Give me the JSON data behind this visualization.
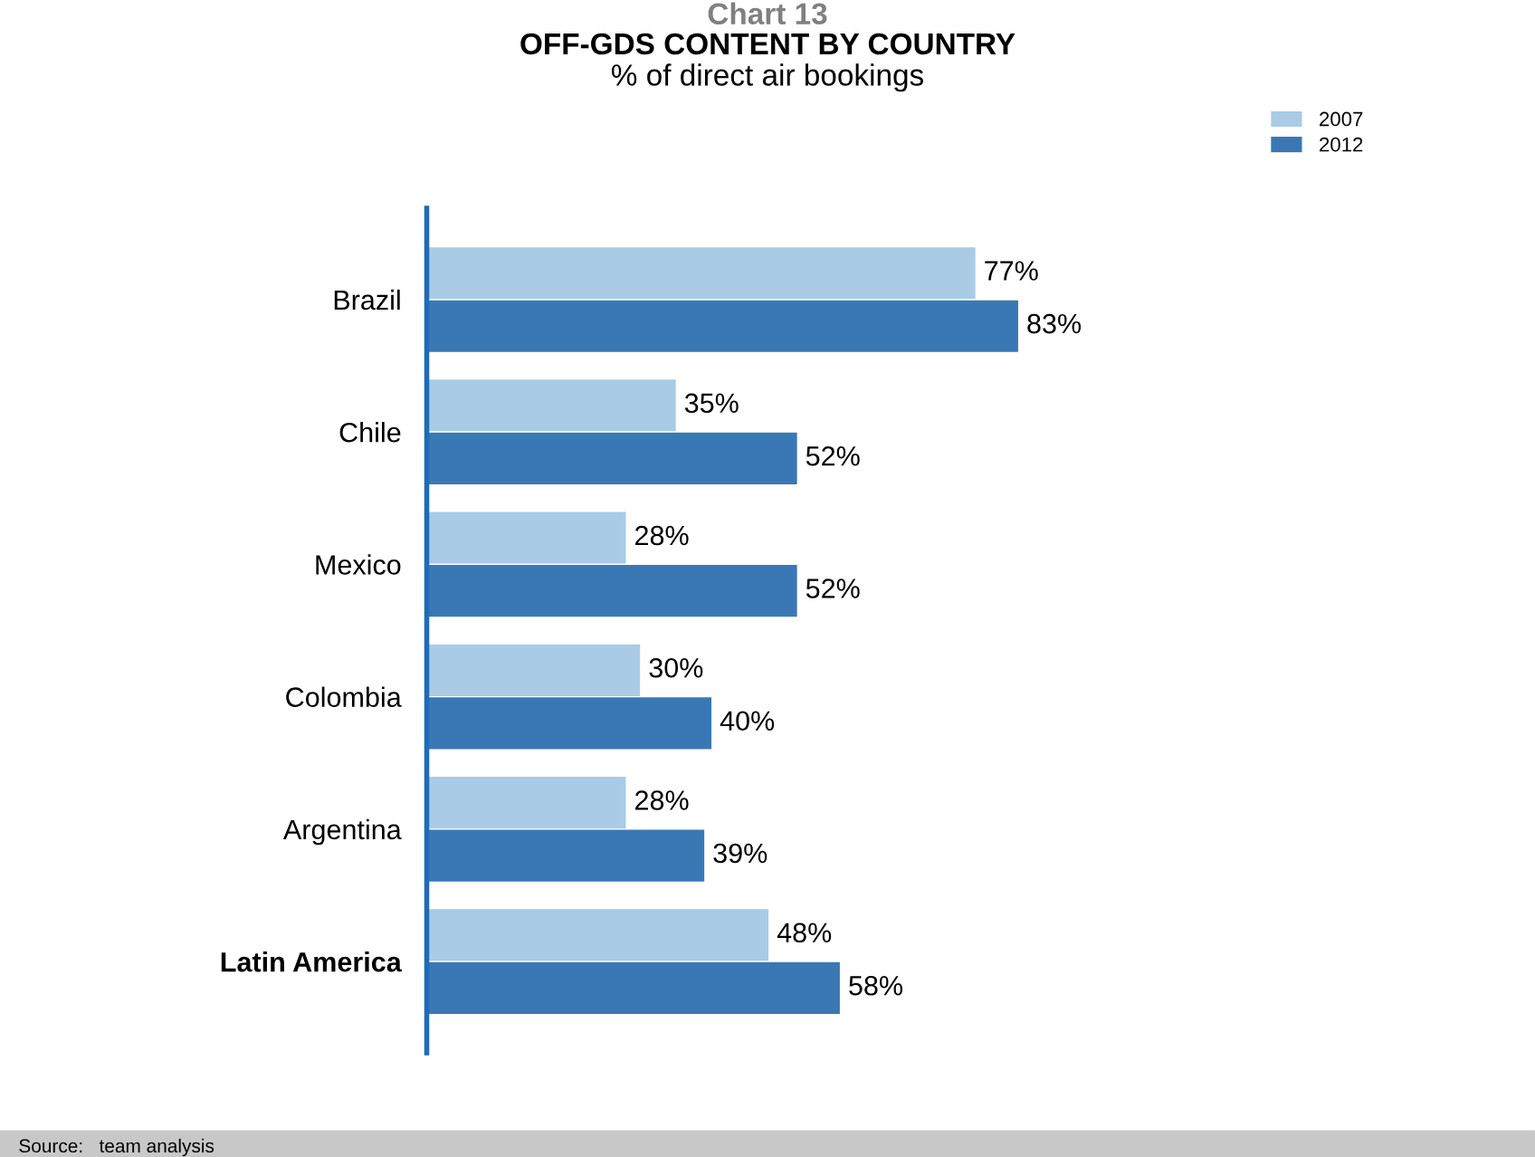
{
  "chart_data": {
    "type": "bar",
    "orientation": "horizontal",
    "title": "OFF-GDS CONTENT BY COUNTRY",
    "subtitle": "% of direct air bookings",
    "annotations": [
      "Chart 13",
      "Source:   team analysis"
    ],
    "categories": [
      "Brazil",
      "Chile",
      "Mexico",
      "Colombia",
      "Argentina",
      "Latin America"
    ],
    "series": [
      {
        "name": "2007",
        "color": "#a9cbe6",
        "values": [
          77,
          35,
          28,
          30,
          28,
          48
        ],
        "value_labels": [
          "77%",
          "35%",
          "28%",
          "30%",
          "28%",
          "48%"
        ]
      },
      {
        "name": "2012",
        "color": "#3a78b5",
        "values": [
          83,
          52,
          52,
          40,
          39,
          58
        ],
        "value_labels": [
          "83%",
          "52%",
          "52%",
          "40%",
          "39%",
          "58%"
        ]
      }
    ],
    "legend": "top right",
    "grid": false,
    "tick_labels": "y"
  }
}
